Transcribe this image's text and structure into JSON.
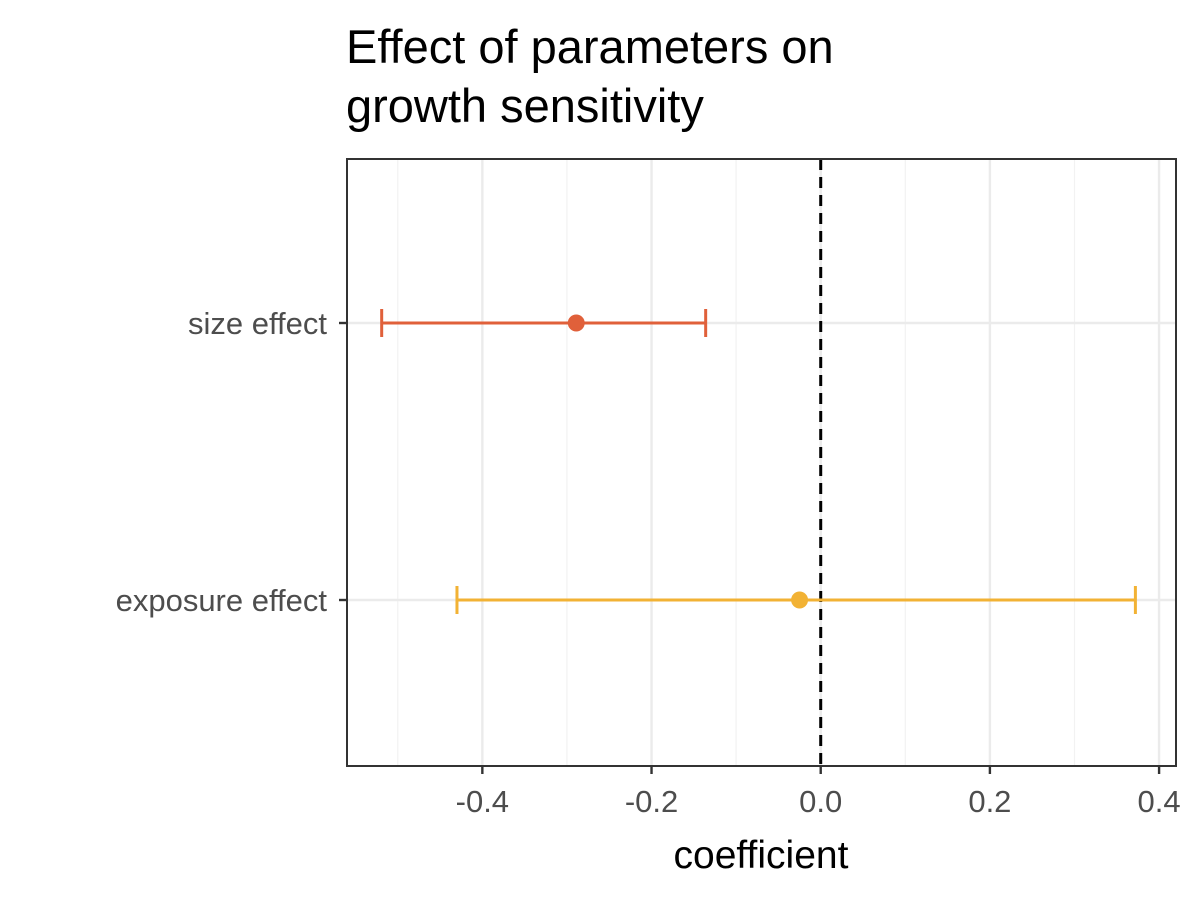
{
  "chart_data": {
    "type": "errorbar",
    "title_lines": [
      "Effect of parameters on",
      "growth sensitivity"
    ],
    "xlabel": "coefficient",
    "ylabel": "",
    "xlim": [
      -0.56,
      0.42
    ],
    "x_ticks": [
      -0.4,
      -0.2,
      0.0,
      0.2,
      0.4
    ],
    "x_tick_labels": [
      "-0.4",
      "-0.2",
      "0.0",
      "0.2",
      "0.4"
    ],
    "grid": true,
    "reference_line": {
      "x": 0.0,
      "style": "dashed",
      "color": "#000000"
    },
    "categories": [
      "size effect",
      "exposure effect"
    ],
    "points": [
      {
        "category": "size effect",
        "estimate": -0.289,
        "lower": -0.519,
        "upper": -0.136,
        "color": "#e0603a"
      },
      {
        "category": "exposure effect",
        "estimate": -0.025,
        "lower": -0.43,
        "upper": 0.372,
        "color": "#f2b234"
      }
    ]
  }
}
